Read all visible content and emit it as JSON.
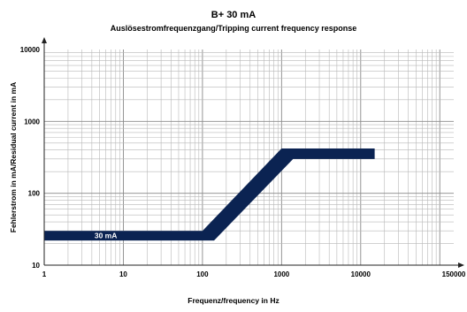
{
  "chart_data": {
    "type": "area",
    "title": "B+ 30 mA",
    "subtitle": "Auslösestromfrequenzgang/Tripping current frequency response",
    "xlabel": "Frequenz/frequency in Hz",
    "ylabel": "Fehlerstrom in mA/Residual current in mA",
    "x_scale": "log",
    "y_scale": "log",
    "xlim": [
      1,
      150000
    ],
    "ylim": [
      10,
      10000
    ],
    "x_ticks": [
      "1",
      "10",
      "100",
      "1000",
      "10000",
      "150000"
    ],
    "y_ticks": [
      "10",
      "100",
      "1000",
      "10000"
    ],
    "grid": true,
    "band_color": "#0b2352",
    "series": [
      {
        "name": "30 mA",
        "upper": {
          "x": [
            1,
            100,
            1000,
            15000
          ],
          "y": [
            30,
            30,
            420,
            420
          ]
        },
        "lower": {
          "x": [
            1,
            140,
            1400,
            15000
          ],
          "y": [
            22,
            22,
            300,
            300
          ]
        }
      }
    ]
  }
}
